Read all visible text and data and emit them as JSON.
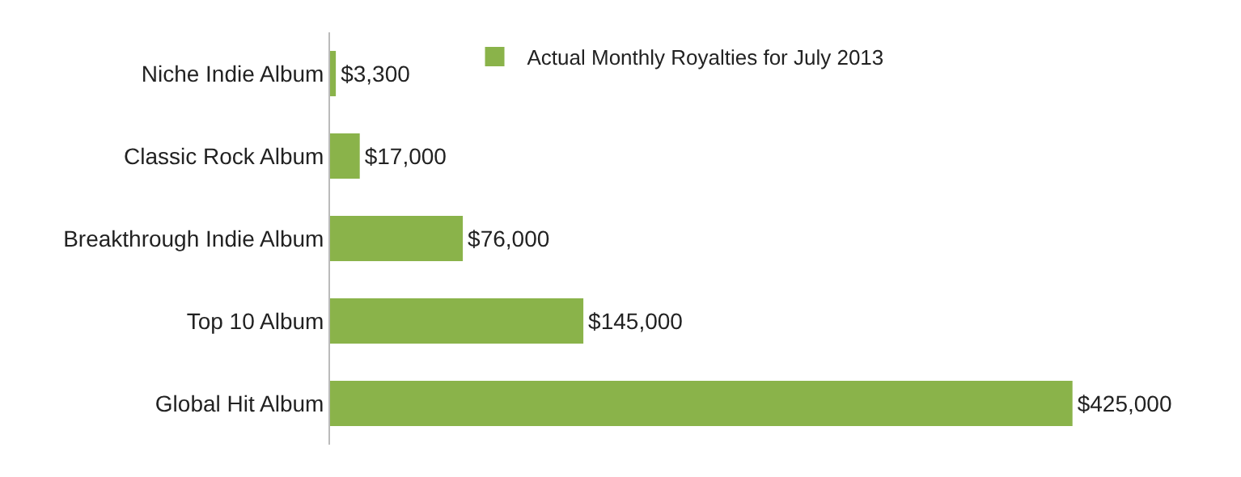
{
  "chart_data": {
    "type": "bar",
    "orientation": "horizontal",
    "categories": [
      "Niche Indie Album",
      "Classic Rock Album",
      "Breakthrough Indie Album",
      "Top 10 Album",
      "Global Hit Album"
    ],
    "series": [
      {
        "name": "Actual Monthly Royalties for July 2013",
        "color": "#8ab34a",
        "values": [
          3300,
          17000,
          76000,
          145000,
          425000
        ],
        "value_labels": [
          "$3,300",
          "$17,000",
          "$76,000",
          "$145,000",
          "$425,000"
        ]
      }
    ],
    "legend": "top right",
    "grid": false,
    "tick_labels": "y"
  }
}
